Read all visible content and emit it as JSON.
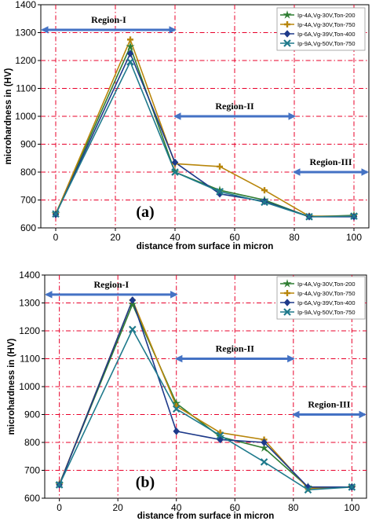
{
  "chart_data": [
    {
      "type": "line",
      "panel_label": "(a)",
      "xlabel": "distance from surface in micron",
      "ylabel": "microhardness in (HV)",
      "xlim": [
        -5,
        105
      ],
      "ylim": [
        600,
        1400
      ],
      "xticks": [
        0,
        20,
        40,
        60,
        80,
        100
      ],
      "yticks": [
        600,
        700,
        800,
        900,
        1000,
        1100,
        1200,
        1300,
        1400
      ],
      "grid": true,
      "legend": "top-right",
      "x": [
        0,
        25,
        40,
        55,
        70,
        85,
        100
      ],
      "series": [
        {
          "name": "Ip-4A,Vg-30V,Ton-200",
          "color": "#2e7d32",
          "marker": "star",
          "values": [
            650,
            1250,
            800,
            735,
            700,
            640,
            645
          ]
        },
        {
          "name": "Ip-4A,Vg-30V,Ton-750",
          "color": "#b8860b",
          "marker": "plus",
          "values": [
            650,
            1275,
            830,
            820,
            735,
            642,
            642
          ]
        },
        {
          "name": "Ip-6A,Vg-39V,Ton-400",
          "color": "#1e3a8a",
          "marker": "diamond",
          "values": [
            648,
            1225,
            835,
            722,
            695,
            640,
            640
          ]
        },
        {
          "name": "Ip-9A,Vg-50V,Ton-750",
          "color": "#1f7a8c",
          "marker": "x",
          "values": [
            650,
            1195,
            800,
            730,
            692,
            640,
            642
          ]
        }
      ],
      "regions": [
        {
          "label": "Region-I",
          "from": -5,
          "to": 40,
          "y": 1310
        },
        {
          "label": "Region-II",
          "from": 40,
          "to": 80,
          "y": 1000
        },
        {
          "label": "Region-III",
          "from": 80,
          "to": 105,
          "y": 800
        }
      ]
    },
    {
      "type": "line",
      "panel_label": "(b)",
      "xlabel": "distance from surface in micron",
      "ylabel": "microhardness in (HV)",
      "xlim": [
        -5,
        105
      ],
      "ylim": [
        600,
        1400
      ],
      "xticks": [
        0,
        20,
        40,
        60,
        80,
        100
      ],
      "yticks": [
        600,
        700,
        800,
        900,
        1000,
        1100,
        1200,
        1300,
        1400
      ],
      "grid": true,
      "legend": "top-right",
      "x": [
        0,
        25,
        40,
        55,
        70,
        85,
        100
      ],
      "series": [
        {
          "name": "Ip-4A,Vg-30V,Ton-200",
          "color": "#2e7d32",
          "marker": "star",
          "values": [
            650,
            1295,
            940,
            820,
            780,
            640,
            640
          ]
        },
        {
          "name": "Ip-4A,Vg-30V,Ton-750",
          "color": "#b8860b",
          "marker": "plus",
          "values": [
            650,
            1310,
            930,
            835,
            810,
            635,
            640
          ]
        },
        {
          "name": "Ip-6A,Vg-39V,Ton-400",
          "color": "#1e3a8a",
          "marker": "diamond",
          "values": [
            648,
            1310,
            840,
            810,
            800,
            640,
            640
          ]
        },
        {
          "name": "Ip-9A,Vg-50V,Ton-750",
          "color": "#1f7a8c",
          "marker": "x",
          "values": [
            648,
            1205,
            920,
            825,
            730,
            630,
            640
          ]
        }
      ],
      "regions": [
        {
          "label": "Region-I",
          "from": -5,
          "to": 40,
          "y": 1330
        },
        {
          "label": "Region-II",
          "from": 40,
          "to": 80,
          "y": 1100
        },
        {
          "label": "Region-III",
          "from": 80,
          "to": 105,
          "y": 900
        }
      ]
    }
  ]
}
